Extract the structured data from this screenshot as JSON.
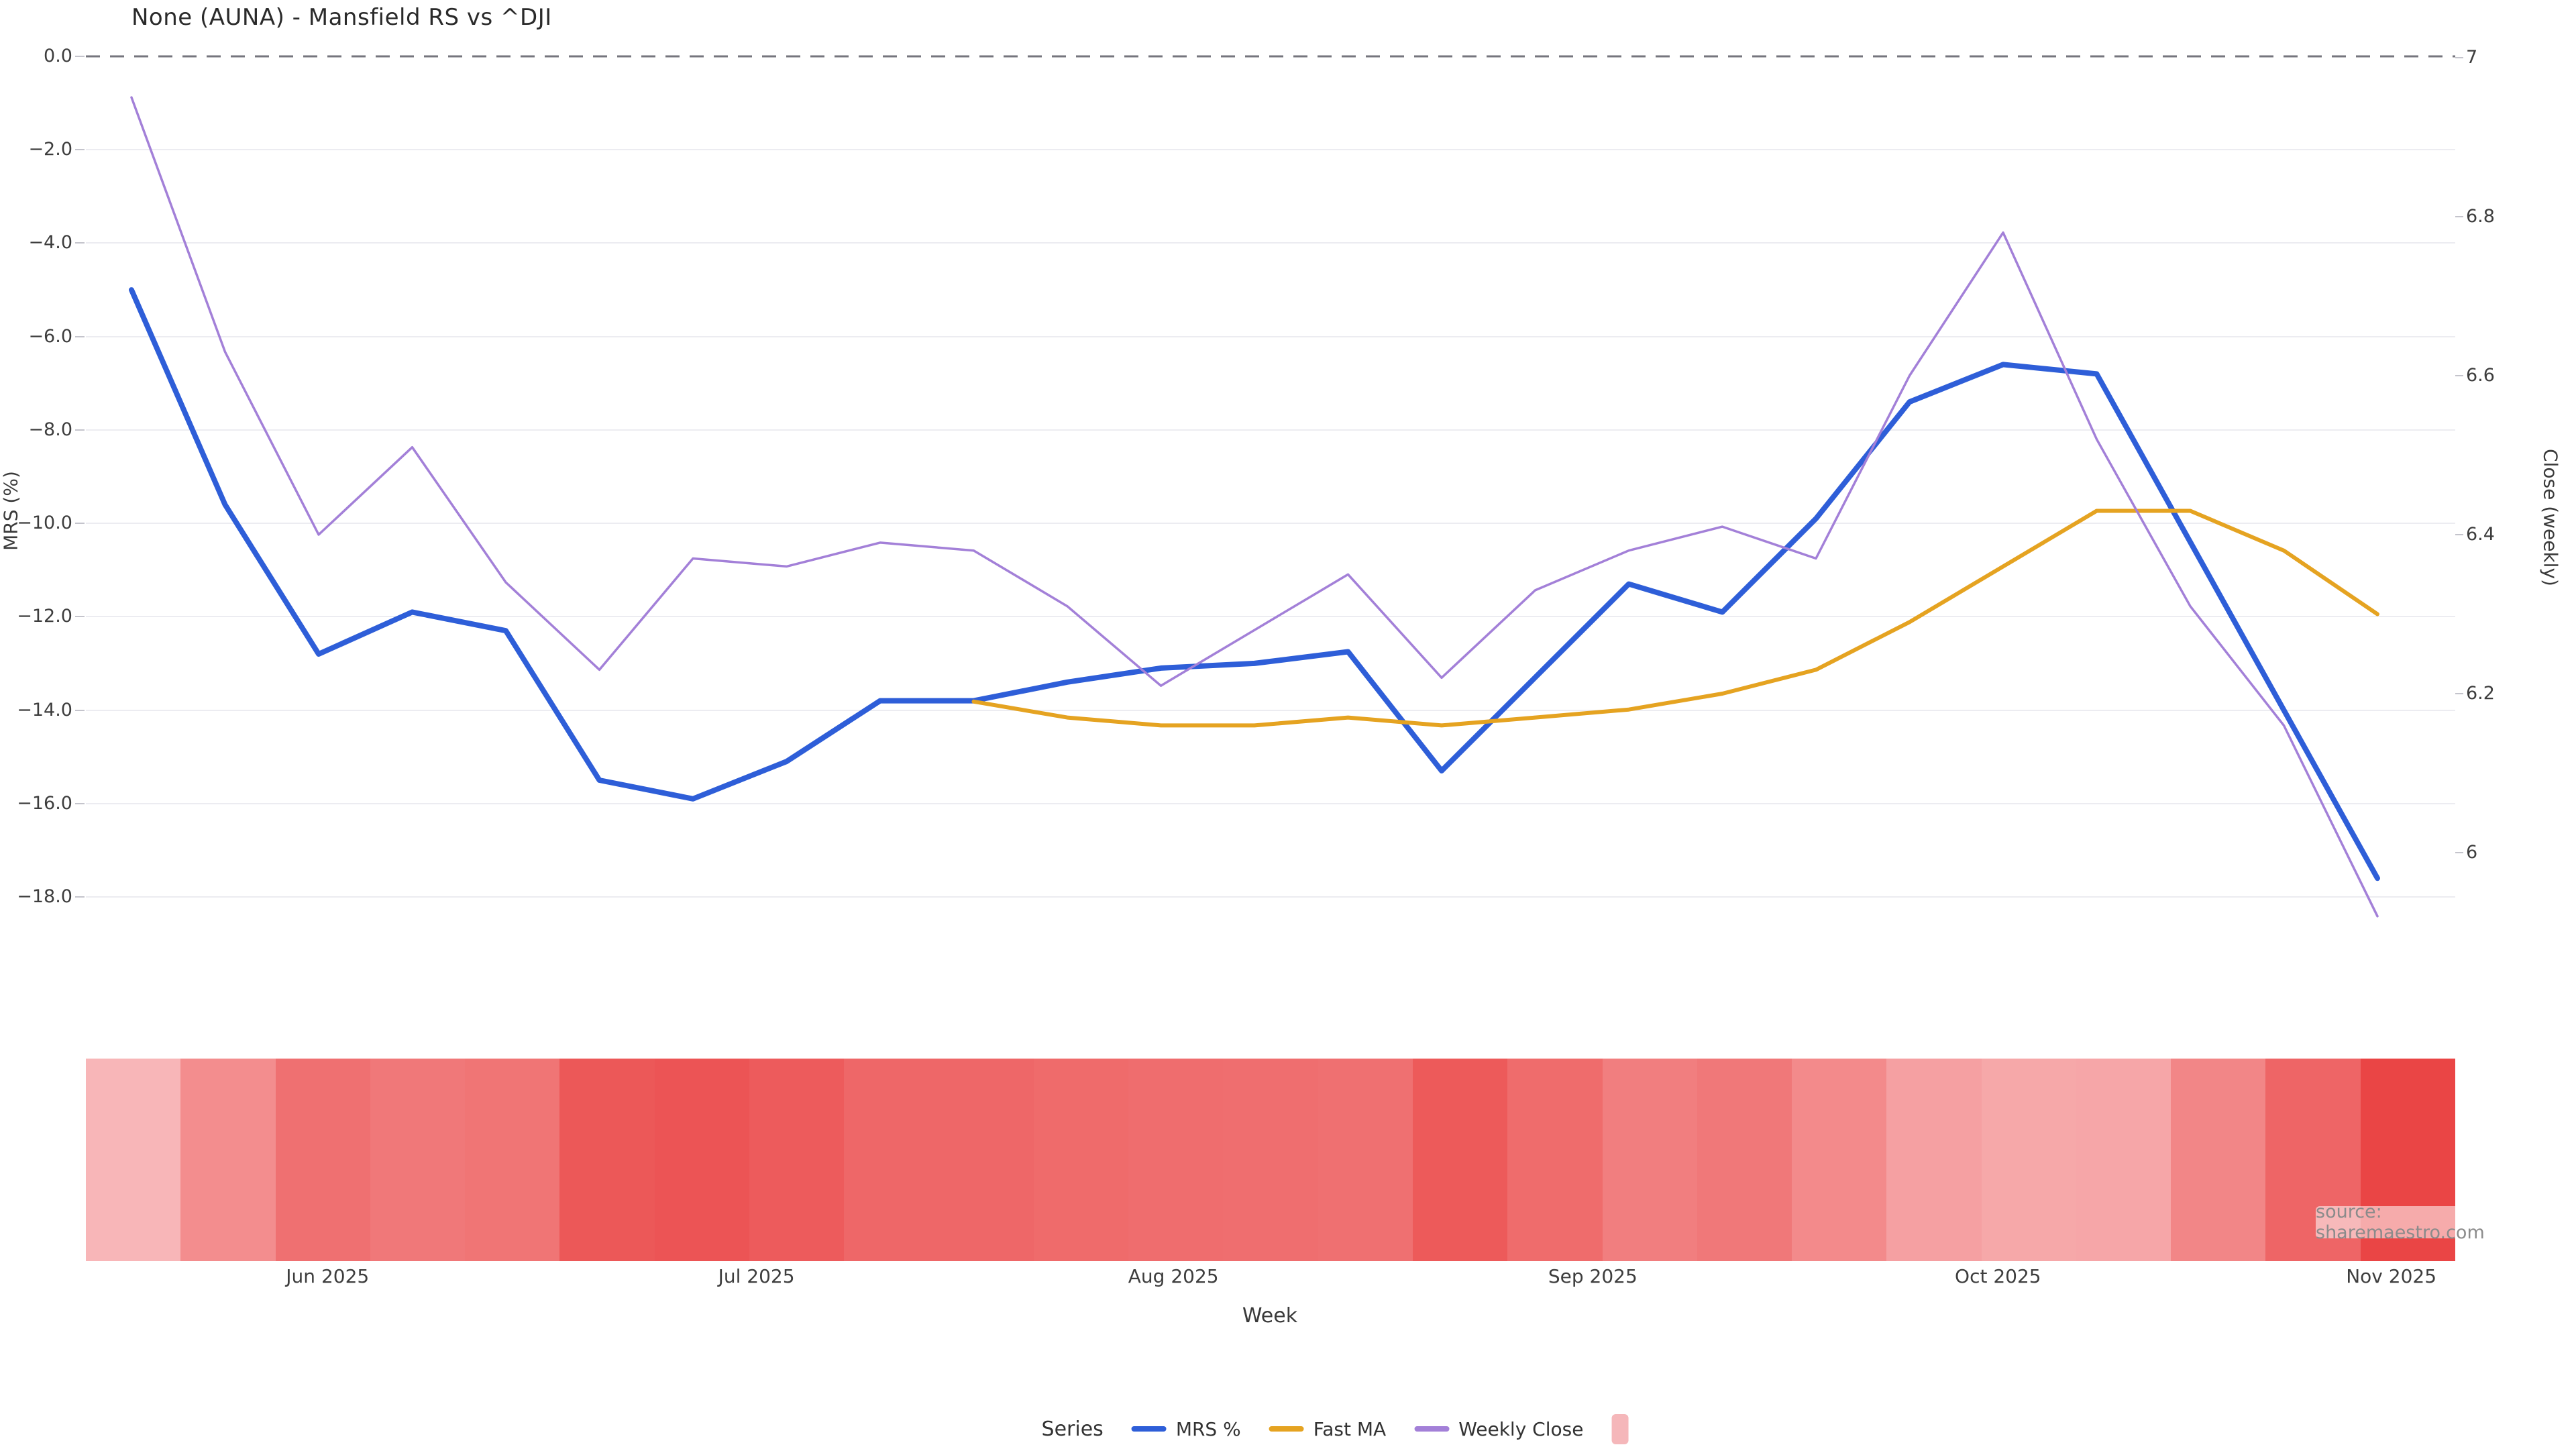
{
  "title": "None (AUNA) - Mansfield RS vs ^DJI",
  "source": "source: sharemaestro.com",
  "axes": {
    "left": {
      "label": "MRS (%)",
      "ticks": [
        {
          "label": "0.0",
          "value": 0
        },
        {
          "label": "−2.0",
          "value": -2
        },
        {
          "label": "−4.0",
          "value": -4
        },
        {
          "label": "−6.0",
          "value": -6
        },
        {
          "label": "−8.0",
          "value": -8
        },
        {
          "label": "−10.0",
          "value": -10
        },
        {
          "label": "−12.0",
          "value": -12
        },
        {
          "label": "−14.0",
          "value": -14
        },
        {
          "label": "−16.0",
          "value": -16
        },
        {
          "label": "−18.0",
          "value": -18
        }
      ]
    },
    "right": {
      "label": "Close (weekly)",
      "ticks": [
        {
          "label": "7",
          "value": 7.0
        },
        {
          "label": "6.8",
          "value": 6.8
        },
        {
          "label": "6.6",
          "value": 6.6
        },
        {
          "label": "6.4",
          "value": 6.4
        },
        {
          "label": "6.2",
          "value": 6.2
        },
        {
          "label": "6",
          "value": 6.0
        }
      ]
    },
    "x": {
      "label": "Week",
      "months": [
        "Jun 2025",
        "Jul 2025",
        "Aug 2025",
        "Sep 2025",
        "Oct 2025",
        "Nov 2025"
      ]
    }
  },
  "legend": {
    "title": "Series",
    "items": [
      {
        "label": "MRS %",
        "color": "#2e5ed8",
        "swatch": "line"
      },
      {
        "label": "Fast MA",
        "color": "#e5a321",
        "swatch": "line"
      },
      {
        "label": "Weekly Close",
        "color": "#a380d8",
        "swatch": "line"
      },
      {
        "label": "",
        "color": "#f5b7ba",
        "swatch": "square"
      }
    ]
  },
  "colors": {
    "grid": "#ececf1",
    "zero_line": "#75757d",
    "heat_light": "#f8b6b8",
    "heat_dark": "#ea4545",
    "title_text": "#2a2a2a",
    "tick_text": "#3d3d3d",
    "source_text": "#8b8b8b"
  },
  "chart_data": {
    "type": "line",
    "title": "None (AUNA) - Mansfield RS vs ^DJI",
    "xlabel": "Week",
    "x_tick_labels": [
      "Jun 2025",
      "Jul 2025",
      "Aug 2025",
      "Sep 2025",
      "Oct 2025",
      "Nov 2025"
    ],
    "n_weeks": 25,
    "left_axis": {
      "label": "MRS (%)",
      "ticks": [
        0,
        -2,
        -4,
        -6,
        -8,
        -10,
        -12,
        -14,
        -16,
        -18
      ],
      "zero_line_dashed": true
    },
    "right_axis": {
      "label": "Close (weekly)",
      "ticks": [
        7,
        6.8,
        6.6,
        6.4,
        6.2,
        6
      ]
    },
    "grid": "horizontal-only",
    "legend_position": "bottom-center",
    "series": [
      {
        "name": "MRS %",
        "axis": "left",
        "color": "#2e5ed8",
        "stroke_width": 8,
        "values": [
          -5.0,
          -9.6,
          -12.8,
          -11.9,
          -12.3,
          -15.5,
          -15.9,
          -15.1,
          -13.8,
          -13.8,
          -13.4,
          -13.1,
          -13.0,
          -12.75,
          -15.3,
          -13.3,
          -11.3,
          -11.9,
          -9.9,
          -7.4,
          -6.6,
          -6.8,
          -10.4,
          -14.0,
          -17.6
        ]
      },
      {
        "name": "Fast MA",
        "axis": "right",
        "color": "#e5a321",
        "stroke_width": 6,
        "values": [
          null,
          null,
          null,
          null,
          null,
          null,
          null,
          null,
          null,
          6.19,
          6.17,
          6.16,
          6.16,
          6.17,
          6.16,
          6.17,
          6.18,
          6.2,
          6.23,
          6.29,
          6.36,
          6.43,
          6.43,
          6.38,
          6.3
        ]
      },
      {
        "name": "Weekly Close",
        "axis": "right",
        "color": "#a380d8",
        "stroke_width": 3.5,
        "values": [
          6.95,
          6.63,
          6.4,
          6.51,
          6.34,
          6.23,
          6.37,
          6.36,
          6.39,
          6.38,
          6.31,
          6.21,
          6.28,
          6.35,
          6.22,
          6.33,
          6.38,
          6.41,
          6.37,
          6.6,
          6.78,
          6.52,
          6.31,
          6.16,
          5.92
        ]
      }
    ],
    "heatmap_strip": {
      "description": "one band per week, red intensity scales with MRS % magnitude",
      "based_on_series": "MRS %",
      "n_bands": 25,
      "color_light": "#f8b6b8",
      "color_dark": "#ea4545"
    }
  }
}
